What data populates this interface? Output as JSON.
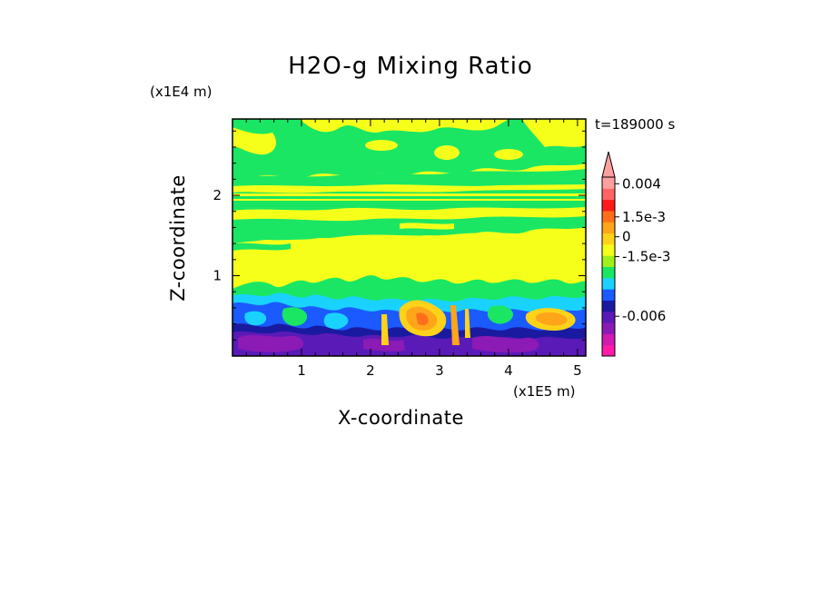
{
  "chart_data": {
    "type": "heatmap",
    "title": "H2O-g Mixing Ratio",
    "xlabel": "X-coordinate",
    "ylabel": "Z-coordinate",
    "x_scale_label": "(x1E5 m)",
    "y_scale_label": "(x1E4 m)",
    "time_label": "t=189000 s",
    "xlim": [
      0,
      5.12
    ],
    "ylim": [
      0,
      2.95
    ],
    "x_ticks": [
      1,
      2,
      3,
      4,
      5
    ],
    "y_ticks": [
      1,
      2
    ],
    "x_tick_labels": [
      "1",
      "2",
      "3",
      "4",
      "5"
    ],
    "y_tick_labels": [
      "1",
      "2"
    ],
    "colorbar": {
      "colors": [
        "#ff1aaa",
        "#d01ab0",
        "#8c1ab4",
        "#5a1ab8",
        "#1a1aa0",
        "#1a5aff",
        "#1ad2ff",
        "#1ae664",
        "#a0f01a",
        "#f5ff1a",
        "#ffd21a",
        "#ffa51a",
        "#ff6e1a",
        "#ff1a1a",
        "#ff6464",
        "#ffa0a0"
      ],
      "tick_labels": [
        "0.004",
        "1.5e-3",
        "0",
        "-1.5e-3",
        "-0.006"
      ],
      "tick_values": [
        0.004,
        0.0015,
        0,
        -0.0015,
        -0.006
      ],
      "vmin": -0.009,
      "vmax": 0.0045,
      "extend": "max"
    },
    "layers": [
      {
        "z_range": [
          2.25,
          2.95
        ],
        "dominant": "yellow-green mix"
      },
      {
        "z_range": [
          1.7,
          2.25
        ],
        "dominant": "green"
      },
      {
        "z_range": [
          1.0,
          1.7
        ],
        "dominant": "yellow"
      },
      {
        "z_range": [
          0.6,
          1.0
        ],
        "dominant": "green/cyan/blue"
      },
      {
        "z_range": [
          0.0,
          0.6
        ],
        "dominant": "purple/blue with orange cells near x=2.5-3.3 and x=4.5"
      }
    ]
  }
}
